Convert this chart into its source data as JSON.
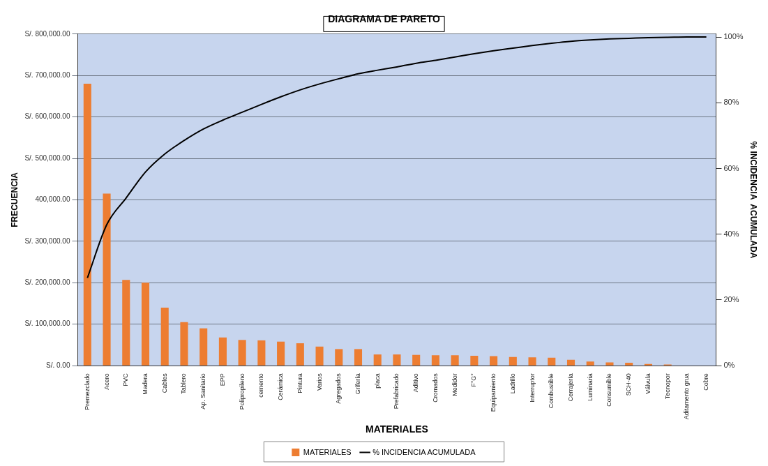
{
  "chart_data": {
    "type": "bar",
    "title": "DIAGRAMA DE PARETO",
    "xlabel": "MATERIALES",
    "ylabel": "FRECUENCIA",
    "y2label": "% INCIDENCIA  ACUMULADA",
    "categories": [
      "Premezclado",
      "Acero",
      "PVC",
      "Madera",
      "Cables",
      "Tablero",
      "Ap. Sanitario",
      "EPP",
      "Polipropileno",
      "cemento",
      "Cerámica",
      "Pintura",
      "Varios",
      "Agregados",
      "Grifería",
      "placa",
      "Prefabricado",
      "Aditivo",
      "Cromados",
      "Medidor",
      "F°G°",
      "Equipamiento",
      "Ladrillo",
      "Interruptor",
      "Combustible",
      "Cerrajería",
      "Luminaria",
      "Consumible",
      "SCH-40",
      "Válvula",
      "Tecnopor",
      "Aditamento grua",
      "Cobre"
    ],
    "series": [
      {
        "name": "MATERIALES",
        "color": "#ed7d31",
        "values": [
          680000,
          415000,
          207000,
          200000,
          140000,
          105000,
          90000,
          68000,
          62000,
          61000,
          58000,
          54000,
          46000,
          40000,
          40000,
          27000,
          27000,
          26000,
          25000,
          25000,
          24000,
          23000,
          21000,
          20000,
          19000,
          14000,
          10000,
          8000,
          7000,
          4000,
          3000,
          null,
          0
        ]
      },
      {
        "name": "% INCIDENCIA ACUMULADA",
        "type": "line",
        "axis": "y2",
        "color": "#000000",
        "marker": "none",
        "line_style": "solid",
        "values": [
          26.7,
          42.9,
          51.0,
          58.9,
          64.4,
          68.5,
          72.0,
          74.7,
          77.1,
          79.5,
          81.8,
          83.9,
          85.7,
          87.3,
          88.8,
          89.9,
          90.9,
          92.0,
          92.9,
          93.9,
          94.9,
          95.8,
          96.6,
          97.4,
          98.1,
          98.7,
          99.1,
          99.4,
          99.6,
          99.8,
          99.9,
          100.0,
          100.0
        ]
      }
    ],
    "ylim": [
      0,
      800000
    ],
    "yticks": [
      {
        "value": 0,
        "label": "S/. 0.00"
      },
      {
        "value": 100000,
        "label": "S/. 100,000.00"
      },
      {
        "value": 200000,
        "label": "S/. 200,000.00"
      },
      {
        "value": 300000,
        "label": "S/. 300,000.00"
      },
      {
        "value": 400000,
        "label": "400,000.00"
      },
      {
        "value": 500000,
        "label": "S/. 500,000.00"
      },
      {
        "value": 600000,
        "label": "S/. 600,000.00"
      },
      {
        "value": 700000,
        "label": "S/. 700,000.00"
      },
      {
        "value": 800000,
        "label": "S/. 800,000.00"
      }
    ],
    "y2lim": [
      0,
      100.9
    ],
    "y2ticks": [
      {
        "value": 0,
        "label": "0%"
      },
      {
        "value": 20,
        "label": "20%"
      },
      {
        "value": 40,
        "label": "40%"
      },
      {
        "value": 60,
        "label": "60%"
      },
      {
        "value": 80,
        "label": "80%"
      },
      {
        "value": 100,
        "label": "100%"
      }
    ],
    "grid": "y",
    "legend": "bottom"
  }
}
